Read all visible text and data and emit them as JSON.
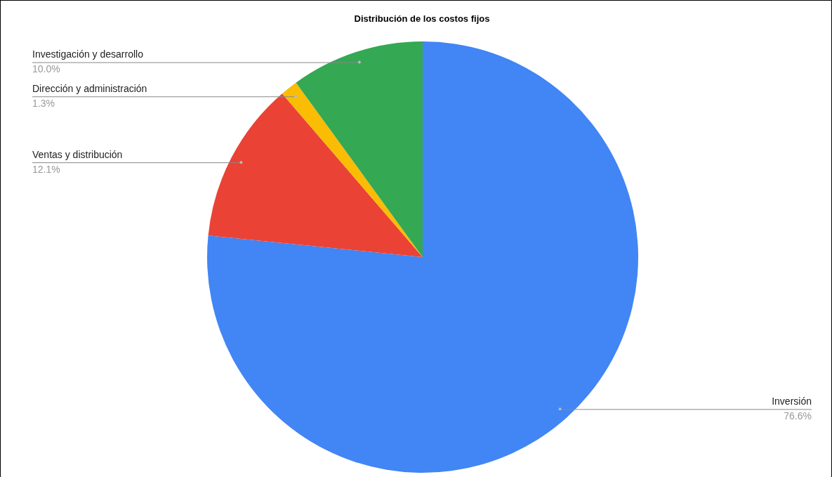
{
  "chart_data": {
    "type": "pie",
    "title": "Distribución de los costos fijos",
    "categories": [
      "Inversión",
      "Ventas y distribución",
      "Dirección y administración",
      "Investigación y desarrollo"
    ],
    "values": [
      76.6,
      12.1,
      1.3,
      10.0
    ],
    "colors": [
      "#4285f4",
      "#ea4335",
      "#fbbc04",
      "#34a853"
    ],
    "value_labels": [
      "76.6%",
      "12.1%",
      "1.3%",
      "10.0%"
    ],
    "legend": false
  }
}
